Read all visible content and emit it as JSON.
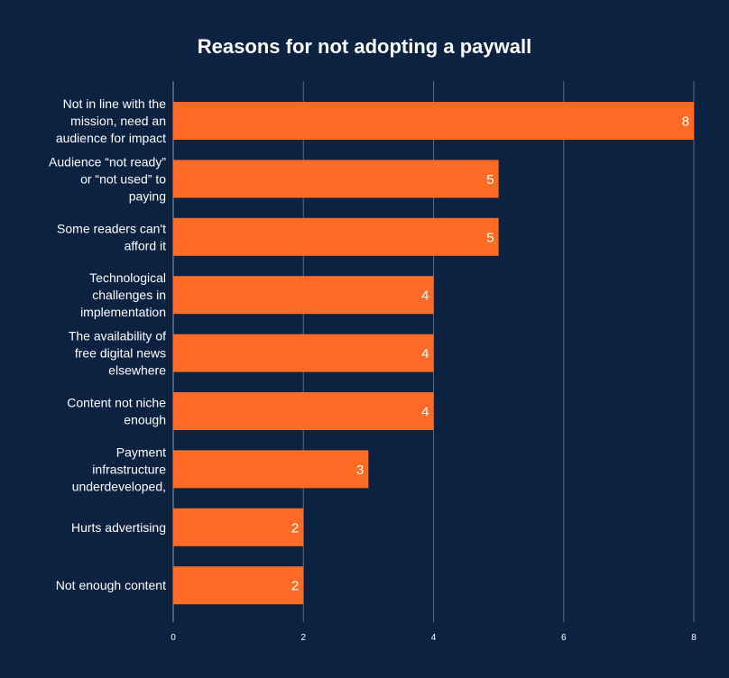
{
  "colors": {
    "background": "#0d2240",
    "bar": "#fd6b26",
    "grid": "#5a6b82",
    "text": "#ffffff"
  },
  "chart_data": {
    "type": "bar",
    "orientation": "horizontal",
    "title": "Reasons for not adopting a paywall",
    "xlabel": "",
    "ylabel": "",
    "categories": [
      "Not in line with the mission, need an audience for impact",
      "Audience “not ready” or “not used” to paying",
      "Some readers can't afford it",
      "Technological challenges in implementation",
      "The availability of free digital news elsewhere",
      "Content not niche enough",
      "Payment infrastructure underdeveloped,",
      "Hurts advertising",
      "Not enough content"
    ],
    "category_lines": [
      [
        "Not in line with the",
        "mission, need an",
        "audience for impact"
      ],
      [
        "Audience “not ready”",
        "or “not used” to",
        "paying"
      ],
      [
        "Some readers can't",
        "afford it"
      ],
      [
        "Technological",
        "challenges in",
        "implementation"
      ],
      [
        "The availability of",
        "free digital news",
        "elsewhere"
      ],
      [
        "Content not niche",
        "enough"
      ],
      [
        "Payment",
        "infrastructure",
        "underdeveloped,"
      ],
      [
        "Hurts advertising"
      ],
      [
        "Not enough content"
      ]
    ],
    "values": [
      8,
      5,
      5,
      4,
      4,
      4,
      3,
      2,
      2
    ],
    "xlim": [
      0,
      8
    ],
    "xticks": [
      0,
      2,
      4,
      6,
      8
    ],
    "grid": true,
    "data_labels": true,
    "legend": "none"
  }
}
